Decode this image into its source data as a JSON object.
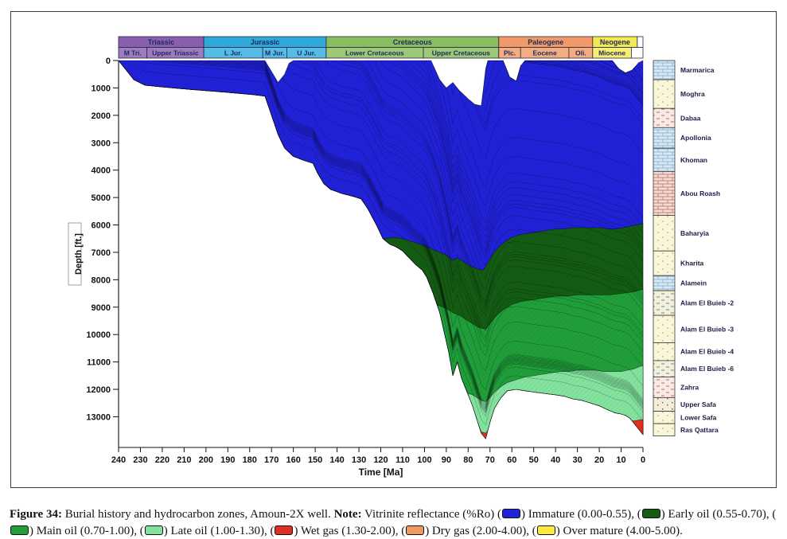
{
  "figure": {
    "caption": {
      "segments": [
        {
          "text": "Figure 34:",
          "bold": true
        },
        {
          "text": " Burial history and hydrocarbon zones, Amoun-2X well. "
        },
        {
          "text": "Note:",
          "bold": true
        },
        {
          "text": " Vitrinite reflectance (%Ro) ("
        },
        {
          "swatch": "immature"
        },
        {
          "text": ") Immature (0.00-0.55), ("
        },
        {
          "swatch": "early_oil"
        },
        {
          "text": ") Early oil (0.55-0.70), ("
        },
        {
          "swatch": "main_oil"
        },
        {
          "text": ") Main oil (0.70-1.00), ("
        },
        {
          "swatch": "late_oil"
        },
        {
          "text": ") Late oil (1.00-1.30), ("
        },
        {
          "swatch": "wet_gas"
        },
        {
          "text": ") Wet gas (1.30-2.00), ("
        },
        {
          "swatch": "dry_gas"
        },
        {
          "text": ") Dry gas (2.00-4.00), ("
        },
        {
          "swatch": "over_mature"
        },
        {
          "text": ") Over mature (4.00-5.00)."
        }
      ]
    },
    "legend_colors": {
      "immature": "#2121d8",
      "early_oil": "#145c14",
      "main_oil": "#1f9e3a",
      "late_oil": "#82e29e",
      "wet_gas": "#e03020",
      "dry_gas": "#f2995f",
      "over_mature": "#ffe93c"
    }
  },
  "chart_data": {
    "type": "area",
    "title": "Burial history and hydrocarbon zones, Amoun-2X well",
    "xlabel": "Time [Ma]",
    "ylabel": "Depth [ft.]",
    "x_range": [
      240,
      0
    ],
    "y_range": [
      0,
      14120
    ],
    "x_ticks": [
      240,
      230,
      220,
      210,
      200,
      190,
      180,
      170,
      160,
      150,
      140,
      130,
      120,
      110,
      100,
      90,
      80,
      70,
      60,
      50,
      40,
      30,
      20,
      10,
      0
    ],
    "y_ticks": [
      0,
      1000,
      2000,
      3000,
      4000,
      5000,
      6000,
      7000,
      8000,
      9000,
      10000,
      11000,
      12000,
      13000
    ],
    "surface_curve": [
      [
        240,
        0
      ],
      [
        173,
        0
      ],
      [
        170,
        400
      ],
      [
        167,
        800
      ],
      [
        164,
        500
      ],
      [
        162,
        100
      ],
      [
        160,
        0
      ],
      [
        97,
        0
      ],
      [
        93,
        700
      ],
      [
        90,
        1000
      ],
      [
        87,
        800
      ],
      [
        84,
        1100
      ],
      [
        80,
        1400
      ],
      [
        77,
        1600
      ],
      [
        74,
        1650
      ],
      [
        72,
        300
      ],
      [
        71,
        0
      ],
      [
        64,
        0
      ],
      [
        61,
        600
      ],
      [
        58,
        750
      ],
      [
        56,
        200
      ],
      [
        54,
        0
      ],
      [
        14,
        0
      ],
      [
        11,
        300
      ],
      [
        8,
        450
      ],
      [
        5,
        350
      ],
      [
        2,
        80
      ],
      [
        0,
        0
      ]
    ],
    "base_curve": [
      [
        240,
        0
      ],
      [
        237,
        300
      ],
      [
        233,
        700
      ],
      [
        228,
        900
      ],
      [
        222,
        950
      ],
      [
        215,
        1000
      ],
      [
        208,
        1050
      ],
      [
        200,
        1100
      ],
      [
        192,
        1150
      ],
      [
        185,
        1200
      ],
      [
        178,
        1250
      ],
      [
        173,
        1300
      ],
      [
        170,
        2000
      ],
      [
        167,
        2700
      ],
      [
        164,
        3200
      ],
      [
        160,
        3500
      ],
      [
        155,
        3650
      ],
      [
        151,
        3750
      ],
      [
        149,
        4100
      ],
      [
        146,
        4500
      ],
      [
        143,
        4700
      ],
      [
        138,
        4850
      ],
      [
        133,
        4950
      ],
      [
        129,
        5050
      ],
      [
        126,
        5400
      ],
      [
        122,
        6000
      ],
      [
        119,
        6500
      ],
      [
        116,
        6700
      ],
      [
        113,
        6800
      ],
      [
        110,
        6950
      ],
      [
        107,
        7200
      ],
      [
        104,
        7450
      ],
      [
        101,
        7650
      ],
      [
        99,
        7900
      ],
      [
        96,
        8500
      ],
      [
        93,
        9200
      ],
      [
        91,
        9900
      ],
      [
        89,
        10600
      ],
      [
        87,
        11500
      ],
      [
        85,
        11000
      ],
      [
        83,
        11600
      ],
      [
        81,
        12000
      ],
      [
        78,
        12600
      ],
      [
        76,
        13100
      ],
      [
        74,
        13600
      ],
      [
        72,
        13800
      ],
      [
        70,
        13200
      ],
      [
        68,
        12700
      ],
      [
        65,
        12300
      ],
      [
        62,
        12050
      ],
      [
        58,
        12000
      ],
      [
        54,
        12050
      ],
      [
        50,
        12100
      ],
      [
        45,
        12150
      ],
      [
        40,
        12200
      ],
      [
        36,
        12250
      ],
      [
        32,
        12350
      ],
      [
        28,
        12400
      ],
      [
        24,
        12500
      ],
      [
        20,
        12600
      ],
      [
        16,
        12750
      ],
      [
        13,
        12850
      ],
      [
        10,
        12900
      ],
      [
        8,
        12950
      ],
      [
        6,
        13050
      ],
      [
        4,
        13250
      ],
      [
        2,
        13450
      ],
      [
        0,
        13650
      ]
    ],
    "zones": [
      {
        "name": "Immature",
        "ro": "0.00-0.55",
        "color": "#2121d8",
        "top": "surface"
      },
      {
        "name": "Early oil",
        "ro": "0.55-0.70",
        "color": "#145c14",
        "top_curve": [
          [
            240,
            6600
          ],
          [
            122,
            6600
          ],
          [
            118,
            6500
          ],
          [
            114,
            6450
          ],
          [
            110,
            6500
          ],
          [
            106,
            6600
          ],
          [
            102,
            6700
          ],
          [
            99,
            6800
          ],
          [
            96,
            6900
          ],
          [
            93,
            7000
          ],
          [
            90,
            7100
          ],
          [
            87,
            7300
          ],
          [
            85,
            7200
          ],
          [
            82,
            7350
          ],
          [
            79,
            7500
          ],
          [
            76,
            7600
          ],
          [
            73,
            7650
          ],
          [
            71,
            7400
          ],
          [
            69,
            7100
          ],
          [
            66,
            6800
          ],
          [
            63,
            6600
          ],
          [
            60,
            6450
          ],
          [
            56,
            6350
          ],
          [
            52,
            6300
          ],
          [
            48,
            6250
          ],
          [
            44,
            6200
          ],
          [
            40,
            6150
          ],
          [
            36,
            6150
          ],
          [
            32,
            6100
          ],
          [
            28,
            6100
          ],
          [
            24,
            6100
          ],
          [
            20,
            6100
          ],
          [
            16,
            6150
          ],
          [
            12,
            6150
          ],
          [
            9,
            6100
          ],
          [
            6,
            6050
          ],
          [
            3,
            6000
          ],
          [
            0,
            5950
          ]
        ]
      },
      {
        "name": "Main oil",
        "ro": "0.70-1.00",
        "color": "#1f9e3a",
        "top_curve": [
          [
            240,
            9000
          ],
          [
            100,
            8950
          ],
          [
            96,
            8900
          ],
          [
            93,
            8950
          ],
          [
            90,
            9050
          ],
          [
            87,
            9200
          ],
          [
            84,
            9300
          ],
          [
            81,
            9450
          ],
          [
            78,
            9600
          ],
          [
            75,
            9750
          ],
          [
            72,
            9800
          ],
          [
            70,
            9600
          ],
          [
            67,
            9300
          ],
          [
            64,
            9100
          ],
          [
            60,
            8900
          ],
          [
            56,
            8800
          ],
          [
            52,
            8750
          ],
          [
            48,
            8700
          ],
          [
            44,
            8650
          ],
          [
            40,
            8600
          ],
          [
            35,
            8600
          ],
          [
            30,
            8550
          ],
          [
            25,
            8550
          ],
          [
            20,
            8550
          ],
          [
            15,
            8550
          ],
          [
            10,
            8500
          ],
          [
            5,
            8450
          ],
          [
            0,
            8350
          ]
        ]
      },
      {
        "name": "Late oil",
        "ro": "1.00-1.30",
        "color": "#82e29e",
        "top_curve": [
          [
            240,
            12200
          ],
          [
            80,
            12150
          ],
          [
            78,
            12200
          ],
          [
            76,
            12300
          ],
          [
            74,
            12400
          ],
          [
            72,
            12450
          ],
          [
            70,
            12300
          ],
          [
            68,
            12100
          ],
          [
            65,
            11900
          ],
          [
            62,
            11750
          ],
          [
            58,
            11650
          ],
          [
            54,
            11550
          ],
          [
            50,
            11500
          ],
          [
            46,
            11450
          ],
          [
            42,
            11400
          ],
          [
            38,
            11350
          ],
          [
            34,
            11350
          ],
          [
            30,
            11300
          ],
          [
            26,
            11300
          ],
          [
            22,
            11300
          ],
          [
            18,
            11350
          ],
          [
            14,
            11350
          ],
          [
            10,
            11350
          ],
          [
            7,
            11300
          ],
          [
            4,
            11250
          ],
          [
            1,
            11150
          ],
          [
            0,
            11130
          ]
        ]
      },
      {
        "name": "Wet gas",
        "ro": "1.30-2.00",
        "color": "#e03020",
        "top_curve": [
          [
            240,
            14200
          ],
          [
            76,
            13900
          ],
          [
            74,
            13550
          ],
          [
            72,
            13600
          ],
          [
            70,
            14000
          ],
          [
            20,
            14000
          ],
          [
            14,
            13700
          ],
          [
            10,
            13450
          ],
          [
            8,
            13300
          ],
          [
            6,
            13200
          ],
          [
            4,
            13150
          ],
          [
            2,
            13120
          ],
          [
            0,
            13100
          ]
        ]
      }
    ],
    "horizon_ages": [
      235,
      230,
      225,
      220,
      215,
      210,
      205,
      200,
      195,
      190,
      185,
      180,
      175,
      171,
      168,
      165,
      162,
      158,
      154,
      150,
      146,
      142,
      138,
      134,
      130,
      126,
      123,
      120,
      117,
      114,
      111,
      108,
      105,
      102,
      99,
      96,
      93,
      90,
      87,
      84,
      81,
      78,
      75,
      72,
      69,
      66,
      62,
      58,
      54,
      50,
      45,
      40,
      35,
      30,
      25,
      20,
      16,
      12,
      8,
      5
    ],
    "time_scale": {
      "periods": [
        {
          "label": "Triassic",
          "from": 240,
          "to": 201,
          "color": "#8a5fae"
        },
        {
          "label": "Jurassic",
          "from": 201,
          "to": 145,
          "color": "#2fa8dc"
        },
        {
          "label": "Cretaceous",
          "from": 145,
          "to": 66,
          "color": "#8abc60"
        },
        {
          "label": "Paleogene",
          "from": 66,
          "to": 23,
          "color": "#f19a68"
        },
        {
          "label": "Neogene",
          "from": 23,
          "to": 2.6,
          "color": "#f3ea52"
        },
        {
          "label": "",
          "from": 2.6,
          "to": 0,
          "color": "#ffffff"
        }
      ],
      "epochs": [
        {
          "label": "M Tri.",
          "from": 240,
          "to": 227,
          "color": "#9f7cc0"
        },
        {
          "label": "Upper Triassic",
          "from": 227,
          "to": 201,
          "color": "#9f7cc0"
        },
        {
          "label": "L Jur.",
          "from": 201,
          "to": 174,
          "color": "#55bce8"
        },
        {
          "label": "M Jur.",
          "from": 174,
          "to": 163,
          "color": "#55bce8"
        },
        {
          "label": "U Jur.",
          "from": 163,
          "to": 145,
          "color": "#55bce8"
        },
        {
          "label": "Lower Cretaceous",
          "from": 145,
          "to": 100.5,
          "color": "#9cc878"
        },
        {
          "label": "Upper Cretaceous",
          "from": 100.5,
          "to": 66,
          "color": "#9cc878"
        },
        {
          "label": "Plc.",
          "from": 66,
          "to": 56,
          "color": "#f3ad85"
        },
        {
          "label": "Eocene",
          "from": 56,
          "to": 33.9,
          "color": "#f3ad85"
        },
        {
          "label": "Oli.",
          "from": 33.9,
          "to": 23,
          "color": "#f3ad85"
        },
        {
          "label": "Miocene",
          "from": 23,
          "to": 5.3,
          "color": "#f6ee75"
        },
        {
          "label": "",
          "from": 5.3,
          "to": 0,
          "color": "#ffffff"
        }
      ]
    },
    "strat_column": [
      {
        "name": "Marmarica",
        "top": 0,
        "base": 700,
        "pattern": "brick-blue"
      },
      {
        "name": "Moghra",
        "top": 700,
        "base": 1750,
        "pattern": "sand"
      },
      {
        "name": "Dabaa",
        "top": 1750,
        "base": 2450,
        "pattern": "shale-red"
      },
      {
        "name": "Apollonia",
        "top": 2450,
        "base": 3200,
        "pattern": "brick-blue"
      },
      {
        "name": "Khoman",
        "top": 3200,
        "base": 4050,
        "pattern": "brick-blue"
      },
      {
        "name": "Abou Roash",
        "top": 4050,
        "base": 5650,
        "pattern": "brick-red"
      },
      {
        "name": "Baharyia",
        "top": 5650,
        "base": 6950,
        "pattern": "sand"
      },
      {
        "name": "Kharita",
        "top": 6950,
        "base": 7850,
        "pattern": "sand"
      },
      {
        "name": "Alamein",
        "top": 7850,
        "base": 8400,
        "pattern": "brick-blue"
      },
      {
        "name": "Alam El Buieb -2",
        "top": 8400,
        "base": 9300,
        "pattern": "dash-blue"
      },
      {
        "name": "Alam El Buieb -3",
        "top": 9300,
        "base": 10300,
        "pattern": "sand"
      },
      {
        "name": "Alam El Buieb -4",
        "top": 10300,
        "base": 10950,
        "pattern": "sand"
      },
      {
        "name": "Alam El Buieb -6",
        "top": 10950,
        "base": 11550,
        "pattern": "dash-blue"
      },
      {
        "name": "Zahra",
        "top": 11550,
        "base": 12300,
        "pattern": "shale-red"
      },
      {
        "name": "Upper Safa",
        "top": 12300,
        "base": 12800,
        "pattern": "dots-dark"
      },
      {
        "name": "Lower Safa",
        "top": 12800,
        "base": 13250,
        "pattern": "sand"
      },
      {
        "name": "Ras Qattara",
        "top": 13250,
        "base": 13700,
        "pattern": "sand"
      }
    ]
  }
}
